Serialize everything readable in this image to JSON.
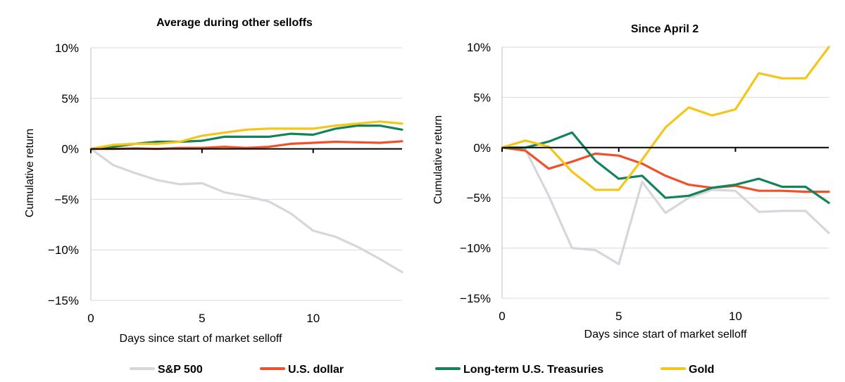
{
  "legend": [
    {
      "name": "S&P 500",
      "color": "#d6d6dc"
    },
    {
      "name": "U.S. dollar",
      "color": "#f0512a"
    },
    {
      "name": "Long-term U.S. Treasuries",
      "color": "#13845a"
    },
    {
      "name": "Gold",
      "color": "#f5c518"
    }
  ],
  "chart_data": [
    {
      "type": "line",
      "title": "Average during other selloffs",
      "xlabel": "Days since start of market selloff",
      "ylabel": "Cumulative return",
      "xlim": [
        0,
        14
      ],
      "ylim": [
        -15,
        10
      ],
      "xticks": [
        0,
        5,
        10
      ],
      "xtick_labels": [
        "0",
        "5",
        "10"
      ],
      "yticks": [
        10,
        5,
        0,
        -5,
        -10,
        -15
      ],
      "ytick_labels": [
        "10%",
        "5%",
        "0%",
        "-5%",
        "-10%",
        "-15%"
      ],
      "grid": "horizontal",
      "zero_line": true,
      "x": [
        0,
        1,
        2,
        3,
        4,
        5,
        6,
        7,
        8,
        9,
        10,
        11,
        12,
        13,
        14
      ],
      "series": [
        {
          "name": "S&P 500",
          "color": "#d6d6dc",
          "values": [
            0,
            -1.6,
            -2.4,
            -3.1,
            -3.5,
            -3.4,
            -4.3,
            -4.7,
            -5.2,
            -6.4,
            -8.1,
            -8.7,
            -9.7,
            -10.9,
            -12.2
          ]
        },
        {
          "name": "U.S. dollar",
          "color": "#f0512a",
          "values": [
            0,
            0.0,
            0.05,
            0.0,
            0.1,
            0.1,
            0.2,
            0.1,
            0.2,
            0.5,
            0.6,
            0.7,
            0.65,
            0.6,
            0.75
          ]
        },
        {
          "name": "Long-term U.S. Treasuries",
          "color": "#13845a",
          "values": [
            0,
            0.2,
            0.5,
            0.7,
            0.7,
            0.8,
            1.2,
            1.2,
            1.2,
            1.5,
            1.4,
            2.0,
            2.3,
            2.3,
            1.9
          ]
        },
        {
          "name": "Gold",
          "color": "#f5c518",
          "values": [
            0,
            0.4,
            0.5,
            0.5,
            0.7,
            1.3,
            1.6,
            1.9,
            2.0,
            2.0,
            2.0,
            2.3,
            2.5,
            2.7,
            2.5
          ]
        }
      ]
    },
    {
      "type": "line",
      "title": "Since April 2",
      "xlabel": "Days since start of market selloff",
      "ylabel": "Cumulative return",
      "xlim": [
        0,
        14
      ],
      "ylim": [
        -15,
        10
      ],
      "xticks": [
        0,
        5,
        10
      ],
      "xtick_labels": [
        "0",
        "5",
        "10"
      ],
      "yticks": [
        10,
        5,
        0,
        -5,
        -10,
        -15
      ],
      "ytick_labels": [
        "10%",
        "5%",
        "0%",
        "-5%",
        "-10%",
        "-15%"
      ],
      "grid": "horizontal",
      "zero_line": true,
      "x": [
        0,
        1,
        2,
        3,
        4,
        5,
        6,
        7,
        8,
        9,
        10,
        11,
        12,
        13,
        14
      ],
      "series": [
        {
          "name": "S&P 500",
          "color": "#d6d6dc",
          "values": [
            0,
            -0.2,
            -4.8,
            -10.0,
            -10.2,
            -11.6,
            -3.4,
            -6.5,
            -5.0,
            -4.2,
            -4.3,
            -6.4,
            -6.3,
            -6.3,
            -8.5
          ]
        },
        {
          "name": "U.S. dollar",
          "color": "#f0512a",
          "values": [
            0,
            -0.3,
            -2.1,
            -1.4,
            -0.6,
            -0.8,
            -1.6,
            -2.8,
            -3.7,
            -4.0,
            -3.8,
            -4.3,
            -4.3,
            -4.4,
            -4.4
          ]
        },
        {
          "name": "Long-term U.S. Treasuries",
          "color": "#13845a",
          "values": [
            0,
            0.0,
            0.6,
            1.5,
            -1.3,
            -3.1,
            -2.8,
            -5.0,
            -4.8,
            -4.0,
            -3.7,
            -3.1,
            -3.9,
            -3.9,
            -5.5
          ]
        },
        {
          "name": "Gold",
          "color": "#f5c518",
          "values": [
            0,
            0.7,
            0.1,
            -2.4,
            -4.2,
            -4.2,
            -1.2,
            2.0,
            4.0,
            3.2,
            3.8,
            7.4,
            6.9,
            6.9,
            10.0
          ]
        }
      ]
    }
  ]
}
